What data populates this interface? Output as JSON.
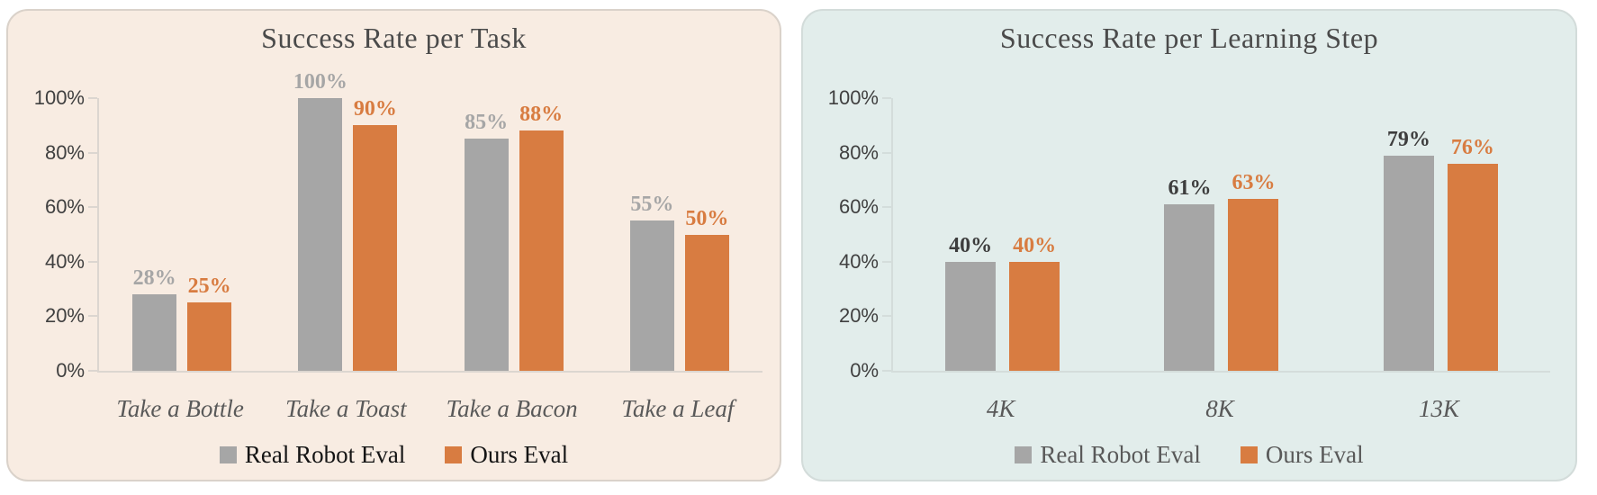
{
  "charts": [
    {
      "title": "Success Rate per Task",
      "panel_bg": "#F8ECE2",
      "panel_border": "#DAD2CA",
      "axis_color": "#DCD6D0",
      "tick_label_color": "#404040",
      "category_color": "#595959",
      "legend_text_color": "#141414",
      "chart_data": {
        "type": "bar",
        "categories": [
          "Take a Bottle",
          "Take a Toast",
          "Take a Bacon",
          "Take a Leaf"
        ],
        "series": [
          {
            "name": "Real Robot Eval",
            "values": [
              28,
              100,
              85,
              55
            ],
            "labels": [
              "28%",
              "100%",
              "85%",
              "55%"
            ],
            "color": "#A6A6A6",
            "label_color": "#A6A6A6"
          },
          {
            "name": "Ours Eval",
            "values": [
              25,
              90,
              88,
              50
            ],
            "labels": [
              "25%",
              "90%",
              "88%",
              "50%"
            ],
            "color": "#D87C41",
            "label_color": "#D87C41"
          }
        ],
        "y_tick_labels": [
          "0%",
          "20%",
          "40%",
          "60%",
          "80%",
          "100%"
        ],
        "ylim": [
          0,
          100
        ],
        "grid": false,
        "legend_position": "bottom"
      }
    },
    {
      "title": "Success Rate per Learning Step",
      "panel_bg": "#E2EDEB",
      "panel_border": "#D3DCDA",
      "axis_color": "#D4DDDB",
      "tick_label_color": "#404040",
      "category_color": "#595959",
      "legend_text_color": "#595959",
      "chart_data": {
        "type": "bar",
        "categories": [
          "4K",
          "8K",
          "13K"
        ],
        "series": [
          {
            "name": "Real Robot Eval",
            "values": [
              40,
              61,
              79
            ],
            "labels": [
              "40%",
              "61%",
              "79%"
            ],
            "color": "#A6A6A6",
            "label_color": "#3D3D3D"
          },
          {
            "name": "Ours Eval",
            "values": [
              40,
              63,
              76
            ],
            "labels": [
              "40%",
              "63%",
              "76%"
            ],
            "color": "#D87C41",
            "label_color": "#D87C41"
          }
        ],
        "y_tick_labels": [
          "0%",
          "20%",
          "40%",
          "60%",
          "80%",
          "100%"
        ],
        "ylim": [
          0,
          100
        ],
        "grid": false,
        "legend_position": "bottom"
      }
    }
  ]
}
